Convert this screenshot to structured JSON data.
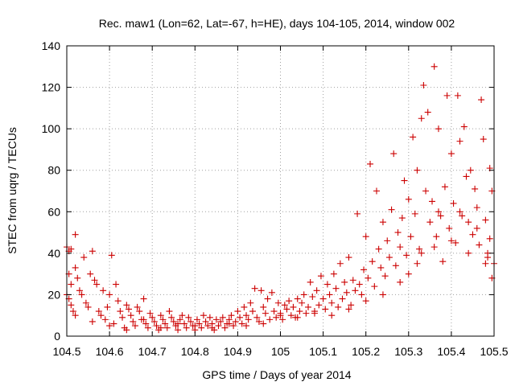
{
  "chart_data": {
    "type": "scatter",
    "title": "Rec. maw1 (Lon=62, Lat=-67, h=HE), days 104-105, 2014, window 002",
    "xlabel": "GPS time / Days of year 2014",
    "ylabel": "STEC from uqrg / TECUs",
    "xlim": [
      104.5,
      105.5
    ],
    "ylim": [
      0,
      140
    ],
    "x_ticks": [
      "104.5",
      "104.6",
      "104.7",
      "104.8",
      "104.9",
      "105",
      "105.1",
      "105.2",
      "105.3",
      "105.4",
      "105.5"
    ],
    "y_ticks": [
      "0",
      "20",
      "40",
      "60",
      "80",
      "100",
      "120",
      "140"
    ],
    "x_tick_values": [
      104.5,
      104.6,
      104.7,
      104.8,
      104.9,
      105.0,
      105.1,
      105.2,
      105.3,
      105.4,
      105.5
    ],
    "y_tick_values": [
      0,
      20,
      40,
      60,
      80,
      100,
      120,
      140
    ],
    "grid": true,
    "marker": "+",
    "color": "#cc0000",
    "series": [
      {
        "name": "STEC",
        "points": [
          [
            104.5,
            43
          ],
          [
            104.505,
            41
          ],
          [
            104.51,
            42
          ],
          [
            104.505,
            30
          ],
          [
            104.51,
            25
          ],
          [
            104.5,
            20
          ],
          [
            104.505,
            18
          ],
          [
            104.51,
            15
          ],
          [
            104.515,
            12
          ],
          [
            104.52,
            10
          ],
          [
            104.52,
            49
          ],
          [
            104.525,
            28
          ],
          [
            104.53,
            22
          ],
          [
            104.535,
            20
          ],
          [
            104.54,
            38
          ],
          [
            104.545,
            16
          ],
          [
            104.55,
            14
          ],
          [
            104.555,
            30
          ],
          [
            104.56,
            41
          ],
          [
            104.565,
            27
          ],
          [
            104.57,
            25
          ],
          [
            104.575,
            12
          ],
          [
            104.58,
            10
          ],
          [
            104.585,
            22
          ],
          [
            104.59,
            8
          ],
          [
            104.595,
            14
          ],
          [
            104.6,
            20
          ],
          [
            104.605,
            39
          ],
          [
            104.61,
            6
          ],
          [
            104.615,
            25
          ],
          [
            104.62,
            17
          ],
          [
            104.625,
            12
          ],
          [
            104.63,
            9
          ],
          [
            104.635,
            4
          ],
          [
            104.64,
            15
          ],
          [
            104.645,
            13
          ],
          [
            104.65,
            10
          ],
          [
            104.655,
            7
          ],
          [
            104.66,
            5
          ],
          [
            104.665,
            14
          ],
          [
            104.67,
            12
          ],
          [
            104.675,
            8
          ],
          [
            104.68,
            18
          ],
          [
            104.685,
            6
          ],
          [
            104.69,
            4
          ],
          [
            104.695,
            11
          ],
          [
            104.7,
            9
          ],
          [
            104.705,
            7
          ],
          [
            104.71,
            5
          ],
          [
            104.715,
            3
          ],
          [
            104.72,
            10
          ],
          [
            104.725,
            8
          ],
          [
            104.73,
            6
          ],
          [
            104.735,
            4
          ],
          [
            104.74,
            12
          ],
          [
            104.745,
            9
          ],
          [
            104.75,
            7
          ],
          [
            104.755,
            5
          ],
          [
            104.76,
            3
          ],
          [
            104.765,
            8
          ],
          [
            104.77,
            10
          ],
          [
            104.775,
            6
          ],
          [
            104.78,
            4
          ],
          [
            104.785,
            9
          ],
          [
            104.79,
            7
          ],
          [
            104.795,
            5
          ],
          [
            104.8,
            3
          ],
          [
            104.805,
            8
          ],
          [
            104.81,
            6
          ],
          [
            104.815,
            4
          ],
          [
            104.82,
            10
          ],
          [
            104.825,
            7
          ],
          [
            104.83,
            5
          ],
          [
            104.835,
            9
          ],
          [
            104.84,
            6
          ],
          [
            104.845,
            3
          ],
          [
            104.85,
            8
          ],
          [
            104.855,
            5
          ],
          [
            104.86,
            7
          ],
          [
            104.865,
            9
          ],
          [
            104.87,
            4
          ],
          [
            104.875,
            6
          ],
          [
            104.88,
            8
          ],
          [
            104.885,
            10
          ],
          [
            104.89,
            5
          ],
          [
            104.895,
            7
          ],
          [
            104.9,
            12
          ],
          [
            104.905,
            9
          ],
          [
            104.91,
            6
          ],
          [
            104.915,
            14
          ],
          [
            104.92,
            10
          ],
          [
            104.925,
            8
          ],
          [
            104.93,
            16
          ],
          [
            104.935,
            12
          ],
          [
            104.94,
            23
          ],
          [
            104.945,
            9
          ],
          [
            104.95,
            7
          ],
          [
            104.955,
            22
          ],
          [
            104.96,
            14
          ],
          [
            104.965,
            11
          ],
          [
            104.97,
            18
          ],
          [
            104.975,
            8
          ],
          [
            104.98,
            21
          ],
          [
            104.985,
            12
          ],
          [
            104.99,
            9
          ],
          [
            104.995,
            16
          ],
          [
            105.0,
            11
          ],
          [
            105.005,
            8
          ],
          [
            105.01,
            15
          ],
          [
            105.015,
            13
          ],
          [
            105.02,
            17
          ],
          [
            105.025,
            10
          ],
          [
            105.03,
            14
          ],
          [
            105.035,
            9
          ],
          [
            105.04,
            18
          ],
          [
            105.045,
            12
          ],
          [
            105.05,
            16
          ],
          [
            105.055,
            20
          ],
          [
            105.06,
            11
          ],
          [
            105.065,
            14
          ],
          [
            105.07,
            26
          ],
          [
            105.075,
            19
          ],
          [
            105.08,
            12
          ],
          [
            105.085,
            22
          ],
          [
            105.09,
            15
          ],
          [
            105.095,
            29
          ],
          [
            105.1,
            18
          ],
          [
            105.105,
            13
          ],
          [
            105.11,
            25
          ],
          [
            105.115,
            20
          ],
          [
            105.12,
            16
          ],
          [
            105.125,
            30
          ],
          [
            105.13,
            23
          ],
          [
            105.135,
            14
          ],
          [
            105.14,
            35
          ],
          [
            105.145,
            18
          ],
          [
            105.15,
            26
          ],
          [
            105.155,
            21
          ],
          [
            105.16,
            38
          ],
          [
            105.165,
            15
          ],
          [
            105.17,
            27
          ],
          [
            105.175,
            22
          ],
          [
            105.18,
            59
          ],
          [
            105.185,
            25
          ],
          [
            105.19,
            20
          ],
          [
            105.195,
            32
          ],
          [
            105.2,
            48
          ],
          [
            105.205,
            28
          ],
          [
            105.21,
            83
          ],
          [
            105.215,
            36
          ],
          [
            105.22,
            24
          ],
          [
            105.225,
            70
          ],
          [
            105.23,
            42
          ],
          [
            105.235,
            33
          ],
          [
            105.24,
            55
          ],
          [
            105.245,
            29
          ],
          [
            105.25,
            46
          ],
          [
            105.255,
            38
          ],
          [
            105.26,
            61
          ],
          [
            105.265,
            88
          ],
          [
            105.27,
            34
          ],
          [
            105.275,
            50
          ],
          [
            105.28,
            43
          ],
          [
            105.285,
            57
          ],
          [
            105.29,
            75
          ],
          [
            105.295,
            39
          ],
          [
            105.3,
            66
          ],
          [
            105.305,
            48
          ],
          [
            105.31,
            96
          ],
          [
            105.315,
            59
          ],
          [
            105.32,
            80
          ],
          [
            105.325,
            42
          ],
          [
            105.33,
            105
          ],
          [
            105.335,
            121
          ],
          [
            105.34,
            70
          ],
          [
            105.345,
            108
          ],
          [
            105.35,
            55
          ],
          [
            105.355,
            65
          ],
          [
            105.36,
            130
          ],
          [
            105.365,
            48
          ],
          [
            105.37,
            100
          ],
          [
            105.375,
            58
          ],
          [
            105.38,
            36
          ],
          [
            105.385,
            72
          ],
          [
            105.39,
            116
          ],
          [
            105.395,
            52
          ],
          [
            105.4,
            88
          ],
          [
            105.405,
            64
          ],
          [
            105.41,
            45
          ],
          [
            105.415,
            116
          ],
          [
            105.42,
            94
          ],
          [
            105.425,
            58
          ],
          [
            105.43,
            101
          ],
          [
            105.435,
            77
          ],
          [
            105.44,
            55
          ],
          [
            105.445,
            80
          ],
          [
            105.45,
            49
          ],
          [
            105.455,
            71
          ],
          [
            105.46,
            62
          ],
          [
            105.465,
            44
          ],
          [
            105.47,
            114
          ],
          [
            105.475,
            95
          ],
          [
            105.48,
            56
          ],
          [
            105.485,
            40
          ],
          [
            105.49,
            81
          ],
          [
            105.495,
            70
          ],
          [
            105.5,
            35
          ],
          [
            105.495,
            28
          ],
          [
            105.49,
            47
          ],
          [
            105.485,
            38
          ],
          [
            104.52,
            33
          ],
          [
            104.56,
            7
          ],
          [
            104.6,
            5
          ],
          [
            104.64,
            3
          ],
          [
            104.68,
            8
          ],
          [
            104.72,
            4
          ],
          [
            104.76,
            6
          ],
          [
            104.8,
            5
          ],
          [
            104.84,
            4
          ],
          [
            104.88,
            6
          ],
          [
            104.92,
            5
          ],
          [
            104.96,
            6
          ],
          [
            105.0,
            10
          ],
          [
            105.04,
            9
          ],
          [
            105.08,
            11
          ],
          [
            105.12,
            10
          ],
          [
            105.16,
            13
          ],
          [
            105.2,
            17
          ],
          [
            105.24,
            20
          ],
          [
            105.28,
            26
          ],
          [
            105.32,
            35
          ],
          [
            105.36,
            43
          ],
          [
            105.4,
            46
          ],
          [
            105.44,
            40
          ],
          [
            105.48,
            35
          ],
          [
            105.3,
            30
          ],
          [
            105.33,
            40
          ],
          [
            105.37,
            60
          ],
          [
            105.42,
            60
          ],
          [
            105.46,
            52
          ]
        ]
      }
    ]
  }
}
